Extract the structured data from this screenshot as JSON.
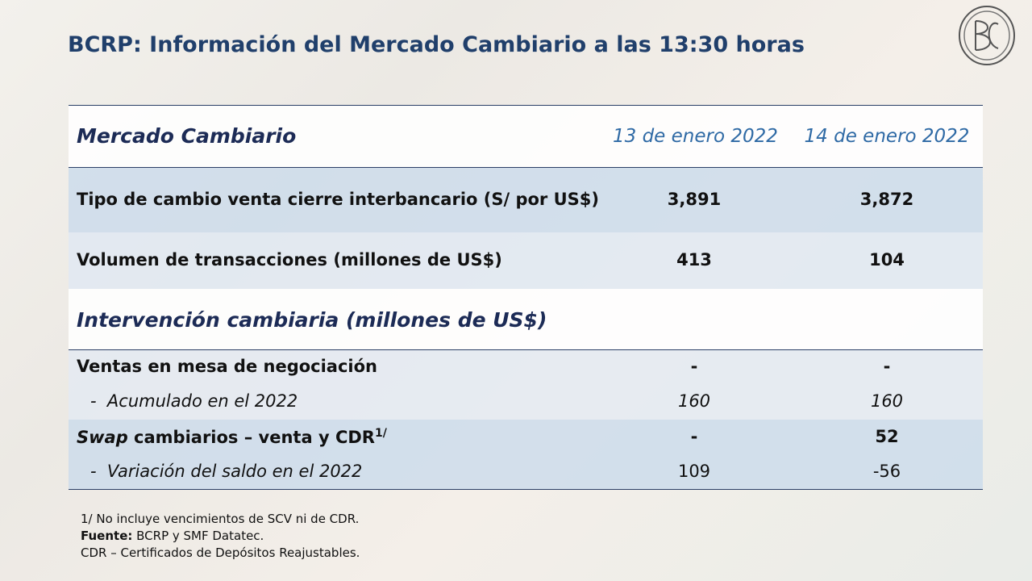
{
  "header": {
    "title": "BCRP: Información del Mercado Cambiario a las 13:30 horas"
  },
  "table": {
    "columns": [
      "Mercado Cambiario",
      "13 de enero 2022",
      "14 de enero 2022"
    ],
    "rows": [
      [
        "Tipo de cambio venta cierre interbancario (S/ por US$)",
        "3,891",
        "3,872"
      ],
      [
        "Volumen de transacciones (millones de US$)",
        "413",
        "104"
      ]
    ],
    "section": "Intervención cambiaria (millones de US$)",
    "section_rows": [
      [
        "Ventas en mesa de negociación",
        "-",
        "-"
      ],
      [
        "-  Acumulado en el 2022",
        "160",
        "160"
      ],
      [
        {
          "italic": "Swap",
          "text": " cambiarios – venta y CDR",
          "sup": "1/"
        },
        "-",
        "52"
      ],
      [
        "-  Variación del saldo en el 2022",
        "109",
        "-56"
      ]
    ]
  },
  "notes": {
    "note1": "1/ No incluye vencimientos de SCV ni de CDR.",
    "source_label": "Fuente:",
    "source": " BCRP y SMF Datatec.",
    "note3": "CDR – Certificados de Depósitos Reajustables."
  }
}
